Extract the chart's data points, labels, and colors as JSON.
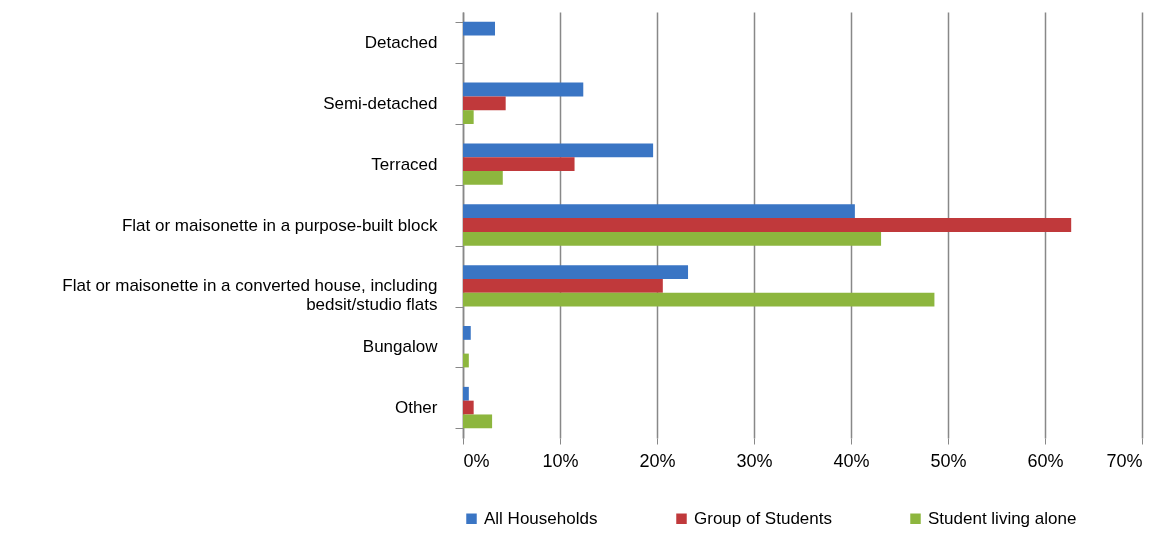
{
  "chart_data": {
    "type": "bar",
    "orientation": "horizontal",
    "categories": [
      "Detached",
      "Semi-detached",
      "Terraced",
      "Flat or maisonette in a purpose-built block",
      "Flat or maisonette in a converted house, including bedsit/studio flats",
      "Bungalow",
      "Other"
    ],
    "series": [
      {
        "name": "All Households",
        "color": "#3a75c4",
        "values": [
          3.3,
          12.4,
          19.6,
          40.4,
          23.2,
          0.8,
          0.6
        ]
      },
      {
        "name": "Group of Students",
        "color": "#c0393b",
        "values": [
          null,
          4.4,
          11.5,
          62.7,
          20.6,
          null,
          1.1
        ]
      },
      {
        "name": "Student living alone",
        "color": "#8db63e",
        "values": [
          null,
          1.1,
          4.1,
          43.1,
          48.6,
          0.6,
          3.0
        ]
      }
    ],
    "xlim": [
      0,
      70
    ],
    "xticks": [
      {
        "value": 0,
        "label": "0%"
      },
      {
        "value": 10,
        "label": "10%"
      },
      {
        "value": 20,
        "label": "20%"
      },
      {
        "value": 30,
        "label": "30%"
      },
      {
        "value": 40,
        "label": "40%"
      },
      {
        "value": 50,
        "label": "50%"
      },
      {
        "value": 60,
        "label": "60%"
      },
      {
        "value": 70,
        "label": "70%"
      }
    ],
    "grid": "x",
    "legend": "bottom"
  }
}
